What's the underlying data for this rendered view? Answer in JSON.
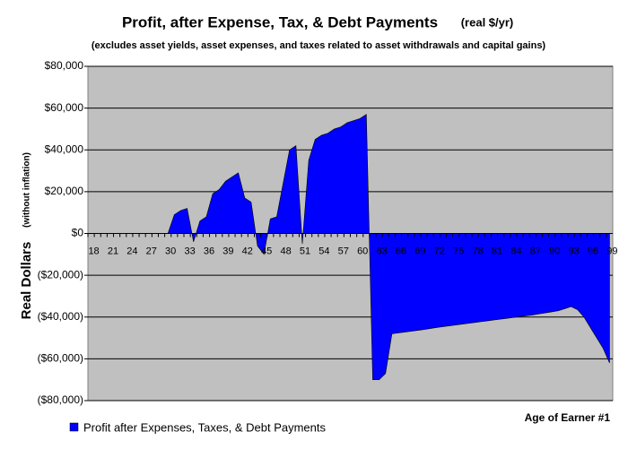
{
  "chart_data": {
    "type": "area",
    "title": "Profit, after Expense, Tax, & Debt Payments",
    "title_units": "(real $/yr)",
    "subtitle": "(excludes asset yields, asset expenses, and taxes related to asset withdrawals and capital gains)",
    "y_label": "Real Dollars",
    "y_label_note": "(without inflation)",
    "x_label": "Age of Earner #1",
    "categories": [
      "18",
      null,
      null,
      "21",
      null,
      null,
      "24",
      null,
      null,
      "27",
      null,
      null,
      "30",
      null,
      null,
      "33",
      null,
      null,
      "36",
      null,
      null,
      "39",
      null,
      null,
      "42",
      null,
      null,
      "45",
      null,
      null,
      "48",
      null,
      null,
      "51",
      null,
      null,
      "54",
      null,
      null,
      "57",
      null,
      null,
      "60",
      null,
      null,
      "63",
      null,
      null,
      "66",
      null,
      null,
      "69",
      null,
      null,
      "72",
      null,
      null,
      "75",
      null,
      null,
      "78",
      null,
      null,
      "81",
      null,
      null,
      "84",
      null,
      null,
      "87",
      null,
      null,
      "90",
      null,
      null,
      "93",
      null,
      null,
      "96",
      null,
      null,
      "99"
    ],
    "series": [
      {
        "name": "Profit after Expenses, Taxes, & Debt Payments",
        "color": "#0000ff",
        "values": [
          0,
          0,
          0,
          0,
          0,
          0,
          0,
          0,
          0,
          0,
          0,
          0,
          0,
          9000,
          11000,
          12000,
          -4000,
          6000,
          8000,
          19000,
          21000,
          25000,
          27000,
          29000,
          17000,
          15000,
          -6000,
          -10000,
          7000,
          8000,
          24000,
          40000,
          42000,
          -5000,
          35000,
          45000,
          47000,
          48000,
          50000,
          51000,
          53000,
          54000,
          55000,
          57000,
          -70000,
          -70000,
          -67000,
          -48000,
          -47600,
          -47200,
          -46800,
          -46400,
          -46000,
          -45500,
          -45000,
          -44600,
          -44200,
          -43800,
          -43400,
          -43000,
          -42600,
          -42200,
          -41800,
          -41400,
          -41000,
          -40600,
          -40200,
          -39800,
          -39400,
          -39000,
          -38500,
          -38000,
          -37500,
          -37000,
          -36000,
          -35000,
          -36500,
          -40000,
          -45000,
          -50000,
          -55000,
          -62000
        ]
      }
    ],
    "ylim": [
      -80000,
      80000
    ],
    "yticks": [
      {
        "value": -80000,
        "label": "($80,000)"
      },
      {
        "value": -60000,
        "label": "($60,000)"
      },
      {
        "value": -40000,
        "label": "($40,000)"
      },
      {
        "value": -20000,
        "label": "($20,000)"
      },
      {
        "value": 0,
        "label": "$0"
      },
      {
        "value": 20000,
        "label": "$20,000"
      },
      {
        "value": 40000,
        "label": "$40,000"
      },
      {
        "value": 60000,
        "label": "$60,000"
      },
      {
        "value": 80000,
        "label": "$80,000"
      }
    ],
    "grid": true,
    "negative_label_color": "#ff0000",
    "plot_background": "#c0c0c0"
  }
}
